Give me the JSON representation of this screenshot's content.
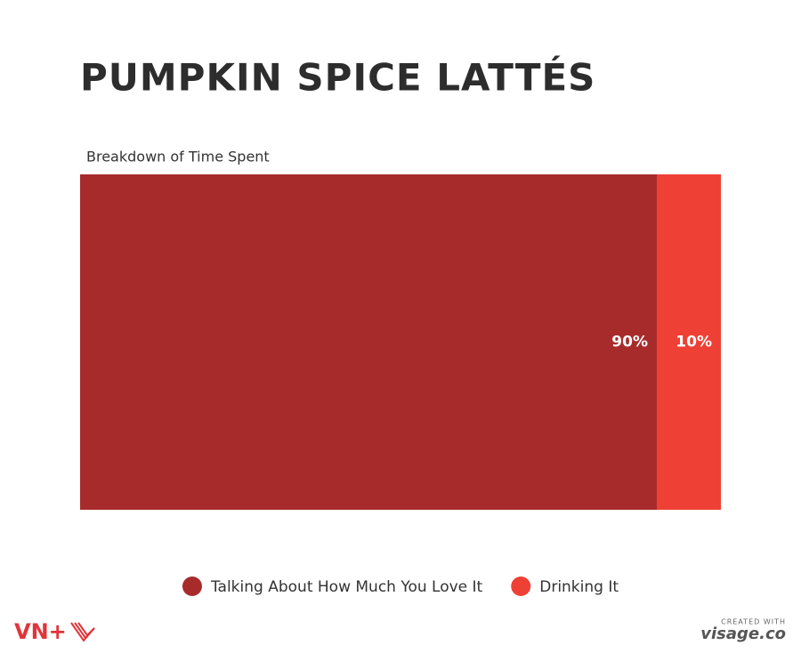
{
  "chart_data": {
    "type": "stacked-bar",
    "title": "PUMPKIN SPICE LATTÉS",
    "subtitle": "Breakdown of Time Spent",
    "orientation": "horizontal",
    "series": [
      {
        "name": "Talking About How Much You Love It",
        "color": "#a82b2b",
        "values": [
          90
        ],
        "value_labels": [
          "90%"
        ]
      },
      {
        "name": "Drinking It",
        "color": "#ee4035",
        "values": [
          10
        ],
        "value_labels": [
          "10%"
        ]
      }
    ],
    "legend": "bottom"
  },
  "branding": {
    "logo": "VN+",
    "credit_prefix": "CREATED WITH",
    "credit": "visage.co"
  }
}
